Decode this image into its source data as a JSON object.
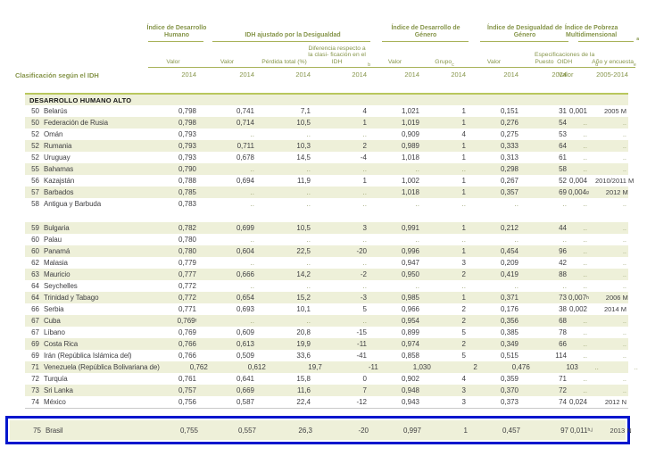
{
  "section_title": "DESARROLLO HUMANO ALTO",
  "header": {
    "left_label": "Clasificación según el IDH",
    "groups": [
      {
        "title": "Índice de Desarrollo Humano",
        "cols": [
          {
            "label": "Valor",
            "year": "2014"
          }
        ]
      },
      {
        "title": "IDH ajustado por la Desigualdad",
        "cols": [
          {
            "label": "Valor",
            "year": "2014"
          },
          {
            "label": "Pérdida total (%)",
            "year": "2014"
          },
          {
            "label": "Diferencia respecto a la clasi- ficación en el IDH^b",
            "year": "2014"
          }
        ]
      },
      {
        "title": "Índice de Desarrollo de Género",
        "cols": [
          {
            "label": "Valor",
            "year": "2014"
          },
          {
            "label": "Grupo^c",
            "year": "2014"
          }
        ]
      },
      {
        "title": "Índice de Desigualdad de Género",
        "cols": [
          {
            "label": "Valor",
            "year": "2014"
          },
          {
            "label": "Puesto",
            "year": "2014"
          }
        ]
      },
      {
        "title": "Índice de Pobreza Multidimensional^a",
        "cols": [
          {
            "label": "Especificaciones de la OIDH^d",
            "year": "Valor"
          },
          {
            "label": "Año y encuesta^e",
            "year": "2005-2014"
          }
        ]
      }
    ]
  },
  "rows_block1": [
    {
      "rank": "50",
      "country": "Belarús",
      "values": [
        "0,798",
        "0,741",
        "7,1",
        "4",
        "1,021",
        "1",
        "0,151",
        "31",
        "0,001",
        "2005 M"
      ]
    },
    {
      "rank": "50",
      "country": "Federación de Rusia",
      "values": [
        "0,798",
        "0,714",
        "10,5",
        "1",
        "1,019",
        "1",
        "0,276",
        "54",
        "..",
        ".."
      ]
    },
    {
      "rank": "52",
      "country": "Omán",
      "values": [
        "0,793",
        "..",
        "..",
        "..",
        "0,909",
        "4",
        "0,275",
        "53",
        "..",
        ".."
      ]
    },
    {
      "rank": "52",
      "country": "Rumania",
      "values": [
        "0,793",
        "0,711",
        "10,3",
        "2",
        "0,989",
        "1",
        "0,333",
        "64",
        "..",
        ".."
      ]
    },
    {
      "rank": "52",
      "country": "Uruguay",
      "values": [
        "0,793",
        "0,678",
        "14,5",
        "-4",
        "1,018",
        "1",
        "0,313",
        "61",
        "..",
        ".."
      ]
    },
    {
      "rank": "55",
      "country": "Bahamas",
      "values": [
        "0,790",
        "..",
        "..",
        "..",
        "..",
        "..",
        "0,298",
        "58",
        "..",
        ".."
      ]
    },
    {
      "rank": "56",
      "country": "Kazajstán",
      "values": [
        "0,788",
        "0,694",
        "11,9",
        "1",
        "1,002",
        "1",
        "0,267",
        "52",
        "0,004",
        "2010/2011 M"
      ]
    },
    {
      "rank": "57",
      "country": "Barbados",
      "values": [
        "0,785",
        "..",
        "..",
        "..",
        "1,018",
        "1",
        "0,357",
        "69",
        "0,004^g",
        "2012 M"
      ]
    },
    {
      "rank": "58",
      "country": "Antigua y Barbuda",
      "values": [
        "0,783",
        "..",
        "..",
        "..",
        "..",
        "..",
        "..",
        "..",
        "..",
        ".."
      ]
    }
  ],
  "rows_block2": [
    {
      "rank": "59",
      "country": "Bulgaria",
      "values": [
        "0,782",
        "0,699",
        "10,5",
        "3",
        "0,991",
        "1",
        "0,212",
        "44",
        "..",
        ".."
      ]
    },
    {
      "rank": "60",
      "country": "Palau",
      "values": [
        "0,780",
        "..",
        "..",
        "..",
        "..",
        "..",
        "..",
        "..",
        "..",
        ".."
      ]
    },
    {
      "rank": "60",
      "country": "Panamá",
      "values": [
        "0,780",
        "0,604",
        "22,5",
        "-20",
        "0,996",
        "1",
        "0,454",
        "96",
        "..",
        ".."
      ]
    },
    {
      "rank": "62",
      "country": "Malasia",
      "values": [
        "0,779",
        "..",
        "..",
        "..",
        "0,947",
        "3",
        "0,209",
        "42",
        "..",
        ".."
      ]
    },
    {
      "rank": "63",
      "country": "Mauricio",
      "values": [
        "0,777",
        "0,666",
        "14,2",
        "-2",
        "0,950",
        "2",
        "0,419",
        "88",
        "..",
        ".."
      ]
    },
    {
      "rank": "64",
      "country": "Seychelles",
      "values": [
        "0,772",
        "..",
        "..",
        "..",
        "..",
        "..",
        "..",
        "..",
        "..",
        ".."
      ]
    },
    {
      "rank": "64",
      "country": "Trinidad y Tabago",
      "values": [
        "0,772",
        "0,654",
        "15,2",
        "-3",
        "0,985",
        "1",
        "0,371",
        "73",
        "0,007^h",
        "2006 M"
      ]
    },
    {
      "rank": "66",
      "country": "Serbia",
      "values": [
        "0,771",
        "0,693",
        "10,1",
        "5",
        "0,966",
        "2",
        "0,176",
        "38",
        "0,002",
        "2014 M"
      ]
    },
    {
      "rank": "67",
      "country": "Cuba",
      "values": [
        "0,769^f",
        "..",
        "..",
        "..",
        "0,954",
        "2",
        "0,356",
        "68",
        "..",
        ".."
      ]
    },
    {
      "rank": "67",
      "country": "Líbano",
      "values": [
        "0,769",
        "0,609",
        "20,8",
        "-15",
        "0,899",
        "5",
        "0,385",
        "78",
        "..",
        ".."
      ]
    },
    {
      "rank": "69",
      "country": "Costa Rica",
      "values": [
        "0,766",
        "0,613",
        "19,9",
        "-11",
        "0,974",
        "2",
        "0,349",
        "66",
        "..",
        ".."
      ]
    },
    {
      "rank": "69",
      "country": "Irán (República Islámica del)",
      "values": [
        "0,766",
        "0,509",
        "33,6",
        "-41",
        "0,858",
        "5",
        "0,515",
        "114",
        "..",
        ".."
      ]
    },
    {
      "rank": "71",
      "country": "Venezuela (República Bolivariana de)",
      "values": [
        "0,762",
        "0,612",
        "19,7",
        "-11",
        "1,030",
        "2",
        "0,476",
        "103",
        "..",
        ".."
      ]
    },
    {
      "rank": "72",
      "country": "Turquía",
      "values": [
        "0,761",
        "0,641",
        "15,8",
        "0",
        "0,902",
        "4",
        "0,359",
        "71",
        "..",
        ".."
      ]
    },
    {
      "rank": "73",
      "country": "Sri Lanka",
      "values": [
        "0,757",
        "0,669",
        "11,6",
        "7",
        "0,948",
        "3",
        "0,370",
        "72",
        "..",
        ".."
      ]
    },
    {
      "rank": "74",
      "country": "México",
      "values": [
        "0,756",
        "0,587",
        "22,4",
        "-12",
        "0,943",
        "3",
        "0,373",
        "74",
        "0,024",
        "2012 N"
      ]
    }
  ],
  "highlight_row": {
    "rank": "75",
    "country": "Brasil",
    "values": [
      "0,755",
      "0,557",
      "26,3",
      "-20",
      "0,997",
      "1",
      "0,457",
      "97",
      "0,011^h,j",
      "2013 N"
    ]
  },
  "colors": {
    "accent_olive": "#86954a",
    "rule_olive": "#a8b259",
    "band_background": "#eef0d9",
    "section_top_border": "#b9c75d",
    "highlight_border": "#0016cd",
    "text": "#3f3f42",
    "missing_value_dots": "#99a26f"
  }
}
